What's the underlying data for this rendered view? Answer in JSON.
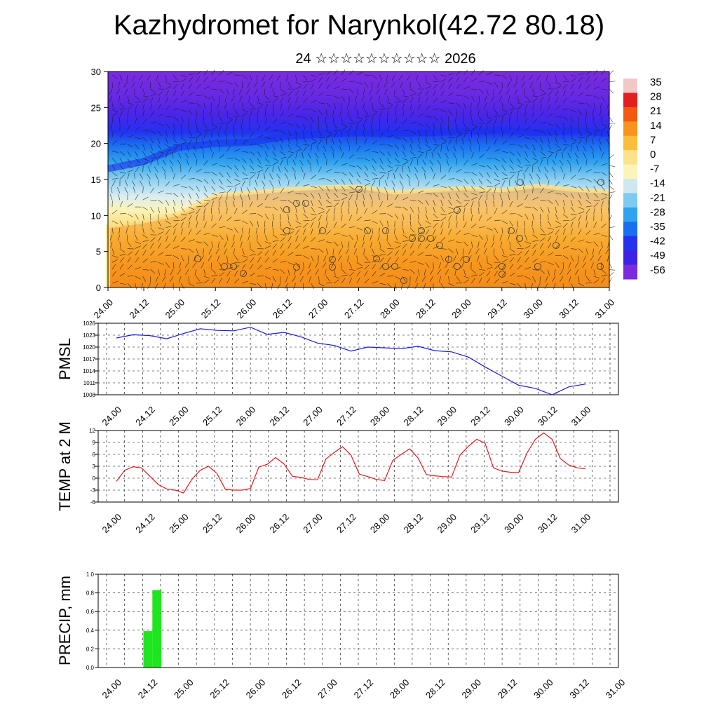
{
  "title": "Kazhydromet for Narynkol(42.72 80.18)",
  "subtitle": "24 ☆☆☆☆☆☆☆☆☆☆ 2026",
  "time_ticks": [
    "24.00",
    "24.12",
    "25.00",
    "25.12",
    "26.00",
    "26.12",
    "27.00",
    "27.12",
    "28.00",
    "28.12",
    "29.00",
    "29.12",
    "30.00",
    "30.12",
    "31.00"
  ],
  "chart_data": [
    {
      "type": "heatmap",
      "name": "temperature-wind cross section",
      "ylim": [
        0,
        30
      ],
      "yticks": [
        0,
        5,
        10,
        15,
        20,
        25,
        30
      ],
      "colorbar": {
        "labels": [
          "35",
          "28",
          "21",
          "14",
          "7",
          "0",
          "-7",
          "-14",
          "-21",
          "-28",
          "-35",
          "-42",
          "-49",
          "-56"
        ],
        "colors": [
          "#f4c7c7",
          "#e32020",
          "#f35a10",
          "#f7941b",
          "#fbbd3c",
          "#fde28a",
          "#fcf3b8",
          "#cfe8f0",
          "#7fcaf0",
          "#2fa3ef",
          "#1a6ef0",
          "#2432f0",
          "#3d22e6",
          "#7a2be0"
        ]
      },
      "thermal_zones": [
        {
          "label": "warm",
          "top_levels": [
            8.5,
            9.2,
            10.3,
            12.8,
            13.2,
            13.6,
            13.9,
            14.0,
            13.2,
            13.5,
            13.8,
            13.5,
            14.1,
            13.6,
            13.3
          ]
        },
        {
          "label": "cold",
          "top_levels": [
            16.5,
            17.5,
            19.5,
            20.0,
            20.2,
            21.0,
            21.3,
            21.5,
            21.4,
            21.5,
            21.7,
            21.8,
            21.5,
            21.8,
            21.4
          ]
        }
      ]
    },
    {
      "type": "line",
      "name": "PMSL",
      "ylabel": "PMSL",
      "ylim": [
        1008,
        1026
      ],
      "yticks": [
        1008,
        1011,
        1014,
        1017,
        1020,
        1023,
        1026
      ],
      "color": "#1a1ae6",
      "x": [
        0,
        1,
        2,
        3,
        4,
        5,
        6,
        7,
        8,
        9,
        10,
        11,
        12,
        13,
        14,
        15,
        16,
        17,
        18,
        19,
        20,
        21,
        22,
        23,
        24,
        25,
        26,
        27,
        28
      ],
      "values": [
        1022.3,
        1023.1,
        1022.9,
        1022.1,
        1023.4,
        1024.6,
        1024.2,
        1024.1,
        1025.0,
        1023.2,
        1023.7,
        1022.6,
        1021.0,
        1020.4,
        1019.0,
        1020.0,
        1019.8,
        1019.6,
        1020.2,
        1019.1,
        1018.8,
        1017.5,
        1015.0,
        1012.7,
        1010.4,
        1009.6,
        1008.0,
        1010.0,
        1010.7
      ]
    },
    {
      "type": "line",
      "name": "TEMP at 2 M",
      "ylabel": "TEMP at 2 M",
      "ylim": [
        -6,
        12
      ],
      "yticks": [
        -6,
        -3,
        0,
        3,
        6,
        9,
        12
      ],
      "color": "#e61a1a",
      "x": [
        0,
        1,
        2,
        3,
        4,
        5,
        6,
        7,
        8,
        9,
        10,
        11,
        12,
        13,
        14,
        15,
        16,
        17,
        18,
        19,
        20,
        21,
        22,
        23,
        24,
        25,
        26,
        27,
        28,
        29,
        30,
        31,
        32,
        33,
        34,
        35,
        36,
        37,
        38,
        39,
        40,
        41,
        42,
        43,
        44,
        45,
        46,
        47,
        48,
        49,
        50,
        51,
        52,
        53,
        54,
        55,
        56
      ],
      "values": [
        -0.8,
        2.0,
        2.9,
        2.6,
        0.5,
        -1.6,
        -2.7,
        -3.0,
        -3.7,
        -0.3,
        2.0,
        3.0,
        1.2,
        -2.8,
        -3.0,
        -3.0,
        -2.6,
        2.8,
        3.5,
        5.2,
        3.6,
        0.5,
        0.2,
        -0.3,
        -0.4,
        4.8,
        6.5,
        7.9,
        5.8,
        1.0,
        0.4,
        -0.3,
        -0.6,
        4.5,
        6.0,
        7.4,
        5.1,
        0.9,
        0.6,
        0.4,
        0.3,
        5.8,
        8.0,
        9.8,
        8.8,
        2.6,
        1.8,
        1.5,
        1.4,
        6.3,
        9.8,
        11.4,
        9.8,
        4.9,
        3.3,
        2.6,
        2.4
      ]
    },
    {
      "type": "bar",
      "name": "PRECIP, mm",
      "ylabel": "PRECIP, mm",
      "ylim": [
        0,
        1.0
      ],
      "yticks": [
        0.0,
        0.2,
        0.4,
        0.6,
        0.8,
        1.0
      ],
      "color": "#1ee61e",
      "x_intervals": [
        [
          1.5,
          2.0
        ],
        [
          2.0,
          2.5
        ]
      ],
      "values": [
        0.39,
        0.83
      ]
    }
  ]
}
